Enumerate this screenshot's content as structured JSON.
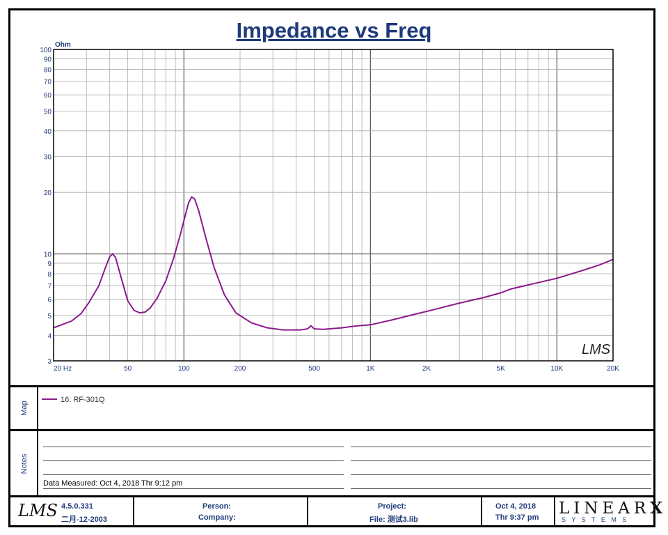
{
  "chart_data": {
    "type": "line",
    "title": "Impedance vs Freq",
    "ylabel": "Ohm",
    "xscale": "log",
    "yscale": "log",
    "xlim": [
      20,
      20000
    ],
    "ylim": [
      3,
      100
    ],
    "x_tick_labels": [
      {
        "value": 20,
        "label": "20  Hz"
      },
      {
        "value": 50,
        "label": "50"
      },
      {
        "value": 100,
        "label": "100"
      },
      {
        "value": 200,
        "label": "200"
      },
      {
        "value": 500,
        "label": "500"
      },
      {
        "value": 1000,
        "label": "1K"
      },
      {
        "value": 2000,
        "label": "2K"
      },
      {
        "value": 5000,
        "label": "5K"
      },
      {
        "value": 10000,
        "label": "10K"
      },
      {
        "value": 20000,
        "label": "20K"
      }
    ],
    "y_tick_labels": [
      {
        "value": 100,
        "label": "100"
      },
      {
        "value": 90,
        "label": "90"
      },
      {
        "value": 80,
        "label": "80"
      },
      {
        "value": 70,
        "label": "70"
      },
      {
        "value": 60,
        "label": "60"
      },
      {
        "value": 50,
        "label": "50"
      },
      {
        "value": 40,
        "label": "40"
      },
      {
        "value": 30,
        "label": "30"
      },
      {
        "value": 20,
        "label": "20"
      },
      {
        "value": 10,
        "label": "10"
      },
      {
        "value": 9,
        "label": "9"
      },
      {
        "value": 8,
        "label": "8"
      },
      {
        "value": 7,
        "label": "7"
      },
      {
        "value": 6,
        "label": "6"
      },
      {
        "value": 5,
        "label": "5"
      },
      {
        "value": 4,
        "label": "4"
      },
      {
        "value": 3,
        "label": "3"
      }
    ],
    "series": [
      {
        "name": "16: RF-301Q",
        "color": "#8b1a8b",
        "points": [
          [
            20,
            4.35
          ],
          [
            25,
            4.7
          ],
          [
            28,
            5.1
          ],
          [
            31,
            5.8
          ],
          [
            35,
            7.0
          ],
          [
            38,
            8.6
          ],
          [
            40,
            9.7
          ],
          [
            41.5,
            10.0
          ],
          [
            43,
            9.6
          ],
          [
            46,
            7.7
          ],
          [
            50,
            5.9
          ],
          [
            54,
            5.3
          ],
          [
            58,
            5.15
          ],
          [
            62,
            5.2
          ],
          [
            66,
            5.45
          ],
          [
            72,
            6.1
          ],
          [
            80,
            7.4
          ],
          [
            88,
            9.5
          ],
          [
            96,
            12.6
          ],
          [
            102,
            15.6
          ],
          [
            106,
            17.8
          ],
          [
            110,
            19.0
          ],
          [
            114,
            18.6
          ],
          [
            120,
            16.3
          ],
          [
            130,
            12.3
          ],
          [
            145,
            8.6
          ],
          [
            165,
            6.3
          ],
          [
            190,
            5.15
          ],
          [
            230,
            4.6
          ],
          [
            280,
            4.35
          ],
          [
            340,
            4.25
          ],
          [
            420,
            4.25
          ],
          [
            460,
            4.3
          ],
          [
            480,
            4.45
          ],
          [
            500,
            4.3
          ],
          [
            560,
            4.28
          ],
          [
            700,
            4.35
          ],
          [
            850,
            4.45
          ],
          [
            1000,
            4.5
          ],
          [
            1300,
            4.75
          ],
          [
            1700,
            5.05
          ],
          [
            2200,
            5.35
          ],
          [
            3000,
            5.75
          ],
          [
            4000,
            6.1
          ],
          [
            5000,
            6.45
          ],
          [
            5700,
            6.75
          ],
          [
            7000,
            7.05
          ],
          [
            8500,
            7.35
          ],
          [
            10000,
            7.6
          ],
          [
            11500,
            7.9
          ],
          [
            14000,
            8.35
          ],
          [
            17000,
            8.85
          ],
          [
            20000,
            9.4
          ]
        ]
      }
    ],
    "watermark": "LMS"
  },
  "map": {
    "section_label": "Map",
    "legend_label": "16: RF-301Q",
    "legend_color": "#8b1a8b"
  },
  "notes": {
    "section_label": "Notes",
    "data_measured": "Data Measured: Oct  4, 2018  Thr  9:12 pm"
  },
  "footer": {
    "logo": "LMS",
    "version": "4.5.0.331",
    "version_date": "二月-12-2003",
    "person_label": "Person:",
    "company_label": "Company:",
    "project_label": "Project:",
    "file_label": "File: 测试3.lib",
    "date": "Oct  4, 2018",
    "time": "Thr  9:37 pm",
    "brand": "LINEAR",
    "brand_x": "X",
    "brand_sub": "S Y S T E M S"
  }
}
